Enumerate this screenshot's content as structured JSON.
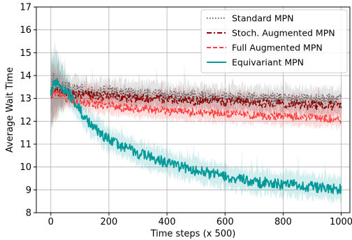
{
  "chart_data": {
    "type": "line",
    "title": "",
    "xlabel": "Time steps (x 500)",
    "ylabel": "Average Wait Time",
    "xlim": [
      -50,
      1030
    ],
    "ylim": [
      8,
      17
    ],
    "xticks": [
      0,
      200,
      400,
      600,
      800,
      1000
    ],
    "yticks": [
      8,
      9,
      10,
      11,
      12,
      13,
      14,
      15,
      16,
      17
    ],
    "grid": true,
    "legend_position": "top-right",
    "series": [
      {
        "name": "Standard MPN",
        "color": "#666666",
        "linestyle": "dotted",
        "band": 0.55,
        "x": [
          0,
          10,
          20,
          40,
          60,
          80,
          100,
          150,
          200,
          250,
          300,
          350,
          400,
          450,
          500,
          550,
          600,
          650,
          700,
          750,
          800,
          850,
          900,
          950,
          1000
        ],
        "values": [
          13.3,
          14.0,
          13.6,
          13.5,
          13.5,
          13.4,
          13.4,
          13.3,
          13.3,
          13.25,
          13.2,
          13.2,
          13.15,
          13.1,
          13.1,
          13.1,
          13.05,
          13.05,
          13.0,
          13.0,
          13.0,
          13.0,
          12.95,
          12.95,
          12.95
        ]
      },
      {
        "name": "Stoch. Augmented MPN",
        "color": "#8b0000",
        "linestyle": "dashdot",
        "band": 0.45,
        "x": [
          0,
          10,
          20,
          40,
          60,
          80,
          100,
          150,
          200,
          250,
          300,
          350,
          400,
          450,
          500,
          550,
          600,
          650,
          700,
          750,
          800,
          850,
          900,
          950,
          1000
        ],
        "values": [
          13.2,
          13.3,
          13.3,
          13.3,
          13.2,
          13.2,
          13.2,
          13.15,
          13.1,
          13.05,
          13.0,
          13.0,
          12.95,
          12.95,
          12.9,
          12.9,
          12.85,
          12.85,
          12.8,
          12.8,
          12.75,
          12.75,
          12.7,
          12.7,
          12.65
        ]
      },
      {
        "name": "Full Augmented MPN",
        "color": "#ff3b3b",
        "linestyle": "dashed",
        "band": 0.4,
        "x": [
          0,
          10,
          20,
          40,
          60,
          80,
          100,
          150,
          200,
          250,
          300,
          350,
          400,
          450,
          500,
          550,
          600,
          650,
          700,
          750,
          800,
          850,
          900,
          950,
          1000
        ],
        "values": [
          13.2,
          13.2,
          13.2,
          13.1,
          13.0,
          12.9,
          12.85,
          12.75,
          12.7,
          12.6,
          12.55,
          12.5,
          12.45,
          12.4,
          12.4,
          12.35,
          12.3,
          12.3,
          12.25,
          12.25,
          12.2,
          12.2,
          12.15,
          12.15,
          12.1
        ]
      },
      {
        "name": "Equivariant MPN",
        "color": "#009999",
        "linestyle": "solid",
        "band": 0.55,
        "x": [
          0,
          10,
          20,
          40,
          60,
          80,
          100,
          120,
          150,
          200,
          250,
          300,
          350,
          400,
          450,
          500,
          550,
          600,
          650,
          700,
          750,
          800,
          850,
          900,
          950,
          1000
        ],
        "values": [
          13.3,
          13.6,
          13.7,
          13.5,
          13.2,
          12.9,
          12.5,
          12.1,
          11.7,
          11.2,
          10.9,
          10.6,
          10.4,
          10.2,
          10.0,
          9.85,
          9.7,
          9.6,
          9.45,
          9.35,
          9.3,
          9.25,
          9.2,
          9.15,
          9.1,
          9.05
        ]
      }
    ]
  }
}
